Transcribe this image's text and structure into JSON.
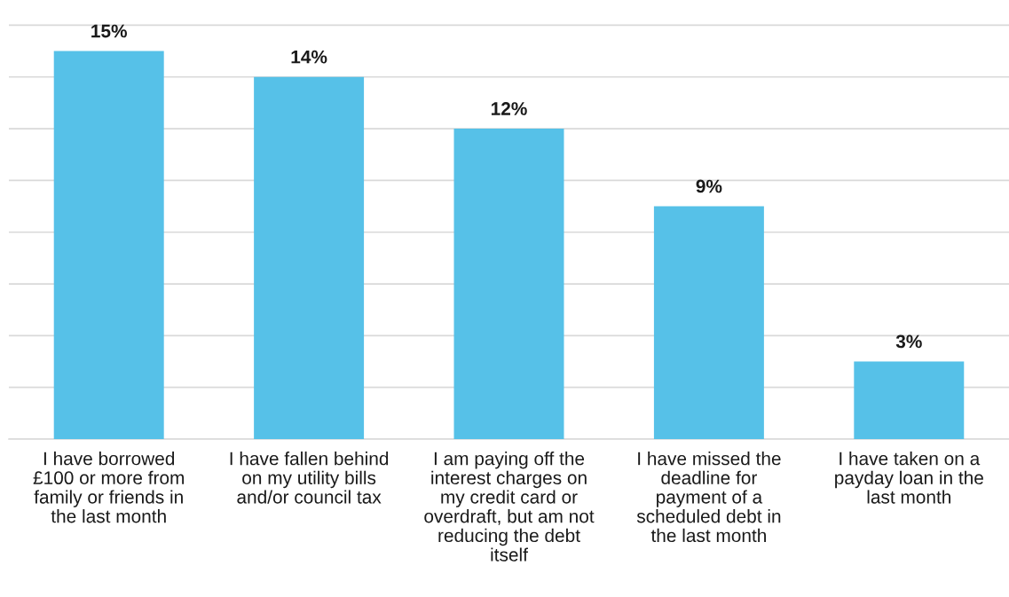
{
  "chart_data": {
    "type": "bar",
    "categories": [
      "I have borrowed £100 or more from family or friends in the last month",
      "I have fallen behind on my utility bills and/or council tax",
      "I am paying off the interest charges on my credit card or overdraft, but am not reducing the debt itself",
      "I have missed the deadline for payment of a scheduled debt in the last month",
      "I have taken on a payday loan in the last month"
    ],
    "values": [
      15,
      14,
      12,
      9,
      3
    ],
    "value_labels": [
      "15%",
      "14%",
      "12%",
      "9%",
      "3%"
    ],
    "color": "#56c1e8",
    "yticks": [
      {
        "value": 0,
        "label": null
      },
      {
        "value": 2,
        "label": null
      },
      {
        "value": 4,
        "label": null
      },
      {
        "value": 6,
        "label": null
      },
      {
        "value": 8,
        "label": null
      },
      {
        "value": 10,
        "label": null
      },
      {
        "value": 12,
        "label": null
      },
      {
        "value": 14,
        "label": null
      },
      {
        "value": 16,
        "label": null
      }
    ],
    "grid": "y",
    "tick_labels": "x"
  }
}
